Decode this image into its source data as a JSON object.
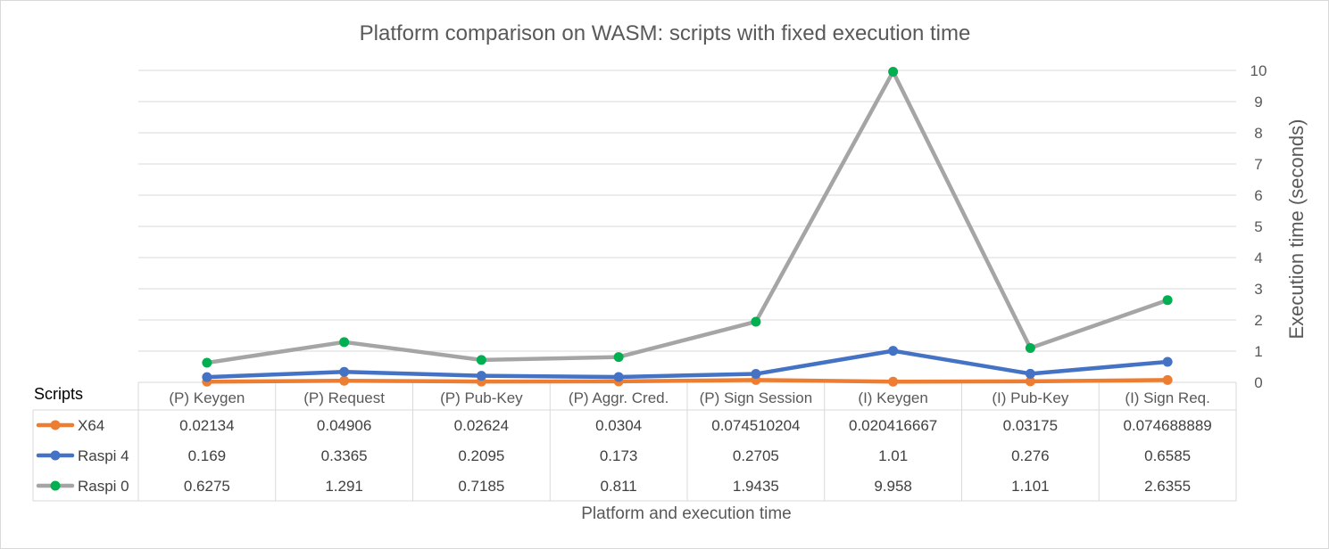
{
  "chart_data": {
    "type": "line",
    "title": "Platform comparison on WASM: scripts with fixed execution time",
    "xlabel": "Platform and execution time",
    "ylabel": "Execution time (seconds)",
    "ylim": [
      0,
      10
    ],
    "yticks": [
      "0",
      "1",
      "2",
      "3",
      "4",
      "5",
      "6",
      "7",
      "8",
      "9",
      "10"
    ],
    "grid": true,
    "table_header_label": "Scripts",
    "categories": [
      "(P) Keygen",
      "(P) Request",
      "(P) Pub-Key",
      "(P) Aggr. Cred.",
      "(P) Sign Session",
      "(I) Keygen",
      "(I) Pub-Key",
      "(I) Sign Req."
    ],
    "series": [
      {
        "name": "X64",
        "color": "#ed7d31",
        "values": [
          0.02134,
          0.04906,
          0.02624,
          0.0304,
          0.074510204,
          0.020416667,
          0.03175,
          0.074688889
        ],
        "labels": [
          "0.02134",
          "0.04906",
          "0.02624",
          "0.0304",
          "0.074510204",
          "0.020416667",
          "0.03175",
          "0.074688889"
        ]
      },
      {
        "name": "Raspi 4",
        "color": "#4472c4",
        "values": [
          0.169,
          0.3365,
          0.2095,
          0.173,
          0.2705,
          1.01,
          0.276,
          0.6585
        ],
        "labels": [
          "0.169",
          "0.3365",
          "0.2095",
          "0.173",
          "0.2705",
          "1.01",
          "0.276",
          "0.6585"
        ]
      },
      {
        "name": "Raspi 0",
        "color": "#a5a5a5",
        "marker_color": "#00b050",
        "values": [
          0.6275,
          1.291,
          0.7185,
          0.811,
          1.9435,
          9.958,
          1.101,
          2.6355
        ],
        "labels": [
          "0.6275",
          "1.291",
          "0.7185",
          "0.811",
          "1.9435",
          "9.958",
          "1.101",
          "2.6355"
        ]
      }
    ]
  }
}
